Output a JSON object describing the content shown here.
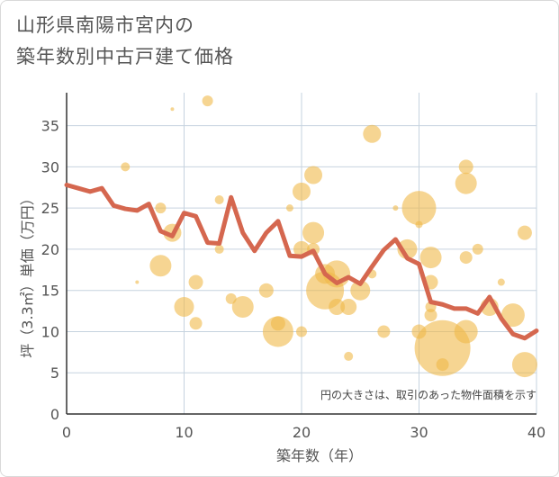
{
  "chart_data": {
    "type": "scatter",
    "title_line1": "山形県南陽市宮内の",
    "title_line2": "築年数別中古戸建て価格",
    "xlabel": "築年数（年）",
    "ylabel": "坪（3.3㎡）単価（万円）",
    "note": "円の大きさは、取引のあった物件面積を示す",
    "xlim": [
      0,
      40
    ],
    "ylim": [
      0,
      39
    ],
    "x_ticks": [
      0,
      10,
      20,
      30,
      40
    ],
    "y_ticks": [
      0,
      5,
      10,
      15,
      20,
      25,
      30,
      35
    ],
    "colors": {
      "bubble": "#f0b94a",
      "line": "#d5674f",
      "grid": "#c6d3df"
    },
    "bubbles": [
      {
        "x": 5,
        "y": 30,
        "r": 5
      },
      {
        "x": 6,
        "y": 16,
        "r": 2
      },
      {
        "x": 8,
        "y": 18,
        "r": 12
      },
      {
        "x": 8,
        "y": 25,
        "r": 6
      },
      {
        "x": 9,
        "y": 22,
        "r": 10
      },
      {
        "x": 9,
        "y": 37,
        "r": 2
      },
      {
        "x": 10,
        "y": 13,
        "r": 11
      },
      {
        "x": 11,
        "y": 16,
        "r": 8
      },
      {
        "x": 11,
        "y": 11,
        "r": 7
      },
      {
        "x": 12,
        "y": 38,
        "r": 6
      },
      {
        "x": 13,
        "y": 26,
        "r": 5
      },
      {
        "x": 13,
        "y": 20,
        "r": 5
      },
      {
        "x": 14,
        "y": 14,
        "r": 6
      },
      {
        "x": 15,
        "y": 13,
        "r": 12
      },
      {
        "x": 17,
        "y": 15,
        "r": 8
      },
      {
        "x": 18,
        "y": 10,
        "r": 17
      },
      {
        "x": 18,
        "y": 11,
        "r": 8
      },
      {
        "x": 19,
        "y": 25,
        "r": 4
      },
      {
        "x": 20,
        "y": 27,
        "r": 10
      },
      {
        "x": 20,
        "y": 20,
        "r": 9
      },
      {
        "x": 20,
        "y": 10,
        "r": 6
      },
      {
        "x": 21,
        "y": 29,
        "r": 10
      },
      {
        "x": 21,
        "y": 22,
        "r": 12
      },
      {
        "x": 21,
        "y": 20,
        "r": 7
      },
      {
        "x": 22,
        "y": 15,
        "r": 21
      },
      {
        "x": 22,
        "y": 17,
        "r": 11
      },
      {
        "x": 23,
        "y": 17,
        "r": 15
      },
      {
        "x": 23,
        "y": 13,
        "r": 9
      },
      {
        "x": 24,
        "y": 13,
        "r": 9
      },
      {
        "x": 24,
        "y": 7,
        "r": 5
      },
      {
        "x": 25,
        "y": 15,
        "r": 11
      },
      {
        "x": 26,
        "y": 34,
        "r": 10
      },
      {
        "x": 26,
        "y": 17,
        "r": 5
      },
      {
        "x": 27,
        "y": 10,
        "r": 7
      },
      {
        "x": 28,
        "y": 25,
        "r": 3
      },
      {
        "x": 29,
        "y": 20,
        "r": 11
      },
      {
        "x": 30,
        "y": 25,
        "r": 19
      },
      {
        "x": 30,
        "y": 23,
        "r": 4
      },
      {
        "x": 30,
        "y": 10,
        "r": 8
      },
      {
        "x": 31,
        "y": 19,
        "r": 12
      },
      {
        "x": 31,
        "y": 16,
        "r": 8
      },
      {
        "x": 31,
        "y": 13,
        "r": 6
      },
      {
        "x": 31,
        "y": 12,
        "r": 7
      },
      {
        "x": 32,
        "y": 8,
        "r": 31
      },
      {
        "x": 32,
        "y": 6,
        "r": 7
      },
      {
        "x": 34,
        "y": 30,
        "r": 8
      },
      {
        "x": 34,
        "y": 28,
        "r": 12
      },
      {
        "x": 34,
        "y": 19,
        "r": 7
      },
      {
        "x": 34,
        "y": 10,
        "r": 13
      },
      {
        "x": 35,
        "y": 20,
        "r": 6
      },
      {
        "x": 36,
        "y": 13,
        "r": 10
      },
      {
        "x": 37,
        "y": 16,
        "r": 4
      },
      {
        "x": 38,
        "y": 12,
        "r": 13
      },
      {
        "x": 39,
        "y": 22,
        "r": 8
      },
      {
        "x": 39,
        "y": 6,
        "r": 14
      }
    ],
    "line": {
      "x": [
        0,
        1,
        2,
        3,
        4,
        5,
        6,
        7,
        8,
        9,
        10,
        11,
        12,
        13,
        14,
        15,
        16,
        17,
        18,
        19,
        20,
        21,
        22,
        23,
        24,
        25,
        26,
        27,
        28,
        29,
        30,
        31,
        32,
        33,
        34,
        35,
        36,
        37,
        38,
        39,
        40
      ],
      "y": [
        27.8,
        27.4,
        27.0,
        27.4,
        25.3,
        24.9,
        24.7,
        25.5,
        22.2,
        21.6,
        24.4,
        24.0,
        20.8,
        20.7,
        26.3,
        22.0,
        19.8,
        22.0,
        23.4,
        19.2,
        19.1,
        19.8,
        17.0,
        15.9,
        16.6,
        15.8,
        17.9,
        19.9,
        21.2,
        18.9,
        18.2,
        13.6,
        13.3,
        12.8,
        12.8,
        12.2,
        14.2,
        11.6,
        9.7,
        9.2,
        10.1
      ]
    }
  }
}
